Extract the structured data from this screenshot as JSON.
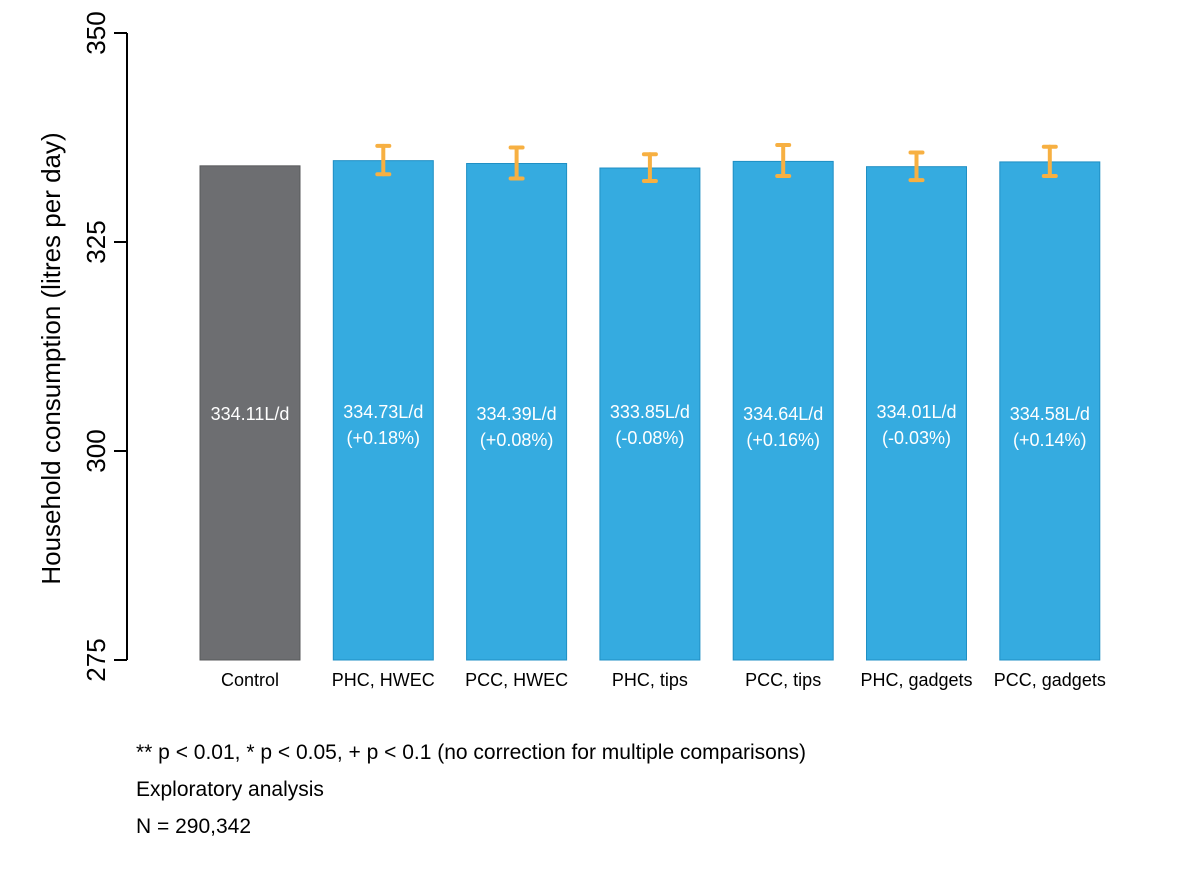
{
  "chart_data": {
    "type": "bar",
    "ylabel": "Household consumption (litres per day)",
    "xlabel": "",
    "ylim": [
      275,
      350
    ],
    "yticks": [
      275,
      300,
      325,
      350
    ],
    "categories": [
      "Control",
      "PHC, HWEC",
      "PCC, HWEC",
      "PHC, tips",
      "PCC, tips",
      "PHC, gadgets",
      "PCC, gadgets"
    ],
    "values": [
      334.11,
      334.73,
      334.39,
      333.85,
      334.64,
      334.01,
      334.58
    ],
    "error_low": [
      null,
      333.1,
      332.6,
      332.3,
      332.9,
      332.4,
      332.9
    ],
    "error_high": [
      null,
      336.5,
      336.3,
      335.5,
      336.6,
      335.7,
      336.4
    ],
    "labels": [
      "334.11L/d",
      "334.73L/d",
      "334.39L/d",
      "333.85L/d",
      "334.64L/d",
      "334.01L/d",
      "334.58L/d"
    ],
    "sublabels": [
      "",
      "(+0.18%)",
      "(+0.08%)",
      "(-0.08%)",
      "(+0.16%)",
      "(-0.03%)",
      "(+0.14%)"
    ],
    "grid": false,
    "colors": {
      "control": "#6d6e71",
      "treatment": "#35abe0",
      "treatment_edge": "#1f8fc4",
      "error_bar": "#f7b042",
      "label": "#ffffff"
    }
  },
  "footnotes": {
    "significance": "** p < 0.01, * p < 0.05, + p < 0.1 (no correction for multiple comparisons)",
    "analysis": "Exploratory analysis",
    "n": "N = 290,342"
  }
}
